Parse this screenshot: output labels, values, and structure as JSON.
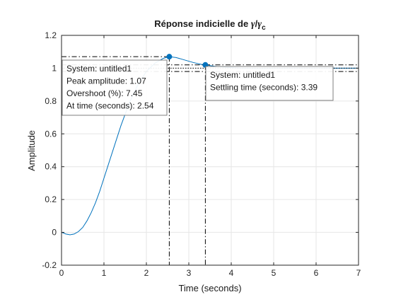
{
  "chart_data": {
    "type": "line",
    "title": "Réponse indicielle de γ/γc",
    "title_parts": {
      "prefix": "Réponse indicielle de ",
      "sym1": "γ",
      "sep": "/",
      "sym2": "γ",
      "sub": "c"
    },
    "xlabel": "Time (seconds)",
    "ylabel": "Amplitude",
    "xlim": [
      0,
      7
    ],
    "ylim": [
      -0.2,
      1.2
    ],
    "xticks": [
      0,
      1,
      2,
      3,
      4,
      5,
      6,
      7
    ],
    "yticks": [
      -0.2,
      0,
      0.2,
      0.4,
      0.6,
      0.8,
      1,
      1.2
    ],
    "xtick_labels": [
      "0",
      "1",
      "2",
      "3",
      "4",
      "5",
      "6",
      "7"
    ],
    "ytick_labels": [
      "-0.2",
      "0",
      "0.2",
      "0.4",
      "0.6",
      "0.8",
      "1",
      "1.2"
    ],
    "grid": true,
    "series": [
      {
        "color": "#0072bd",
        "x": [
          0,
          0.1,
          0.2,
          0.3,
          0.4,
          0.5,
          0.6,
          0.7,
          0.8,
          0.9,
          1.0,
          1.2,
          1.4,
          1.6,
          1.8,
          2.0,
          2.2,
          2.4,
          2.54,
          2.7,
          2.9,
          3.1,
          3.3,
          3.39,
          3.6,
          3.9,
          4.2,
          4.6,
          5.0,
          5.5,
          6.0,
          6.5,
          7.0
        ],
        "y": [
          0,
          -0.01,
          -0.015,
          -0.01,
          0.005,
          0.03,
          0.07,
          0.12,
          0.18,
          0.25,
          0.33,
          0.49,
          0.65,
          0.79,
          0.9,
          0.98,
          1.03,
          1.06,
          1.07,
          1.065,
          1.05,
          1.035,
          1.023,
          1.02,
          1.012,
          1.005,
          1.0,
          0.998,
          0.999,
          1.0,
          1.0,
          1.0,
          1.0
        ]
      }
    ],
    "annotations": {
      "peak": {
        "x": 2.54,
        "y": 1.07,
        "lines": [
          "System: untitled1",
          "Peak amplitude: 1.07",
          "Overshoot (%): 7.45",
          "At time (seconds): 2.54"
        ]
      },
      "settling": {
        "x": 3.39,
        "y": 1.02,
        "band": [
          0.98,
          1.02
        ],
        "final_value": 1,
        "lines": [
          "System: untitled1",
          "Settling time (seconds): 3.39"
        ]
      }
    }
  }
}
